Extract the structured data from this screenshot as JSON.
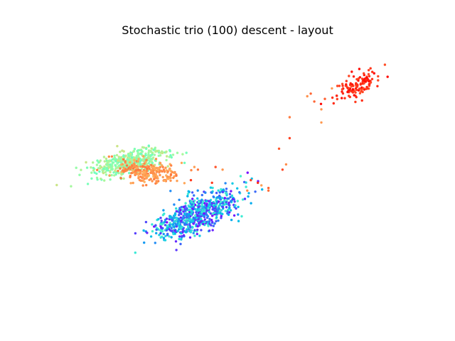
{
  "chart_data": {
    "type": "scatter",
    "title": "Stochastic trio (100) descent - layout",
    "xlabel": "",
    "ylabel": "",
    "axes_visible": false,
    "grid": false,
    "legend": "none",
    "xlim": [
      0,
      100
    ],
    "ylim": [
      0,
      100
    ],
    "colormap": "rainbow",
    "clusters": [
      {
        "center": [
          85,
          83
        ],
        "spread": [
          3.5,
          1.8
        ],
        "angle_deg": 38,
        "count": 130,
        "color_range": [
          0.9,
          1.0
        ]
      },
      {
        "center": [
          40,
          34
        ],
        "spread": [
          7.0,
          3.0
        ],
        "angle_deg": 33,
        "count": 700,
        "color_range": [
          0.0,
          0.4
        ]
      },
      {
        "center": [
          21,
          54
        ],
        "spread": [
          5.5,
          2.2
        ],
        "angle_deg": 18,
        "count": 450,
        "color_range": [
          0.45,
          0.65
        ]
      },
      {
        "center": [
          26,
          50
        ],
        "spread": [
          4.5,
          2.2
        ],
        "angle_deg": -12,
        "count": 230,
        "color_range": [
          0.75,
          0.85
        ]
      }
    ],
    "bridge_points": [
      [
        66,
        71
      ],
      [
        66,
        63
      ],
      [
        63,
        59
      ],
      [
        64,
        51
      ],
      [
        65,
        53
      ],
      [
        60,
        44
      ],
      [
        60,
        43
      ],
      [
        55,
        47
      ],
      [
        54,
        43
      ],
      [
        58,
        45
      ],
      [
        57,
        46
      ],
      [
        71,
        79
      ],
      [
        73,
        77
      ],
      [
        75,
        74
      ],
      [
        76,
        78
      ],
      [
        75,
        69
      ],
      [
        72,
        80
      ],
      [
        78,
        82
      ],
      [
        45,
        52
      ],
      [
        47,
        51
      ],
      [
        40,
        51
      ],
      [
        39,
        52
      ],
      [
        38,
        47
      ],
      [
        44,
        46
      ]
    ],
    "bridge_color_range": [
      0.78,
      0.95
    ]
  }
}
